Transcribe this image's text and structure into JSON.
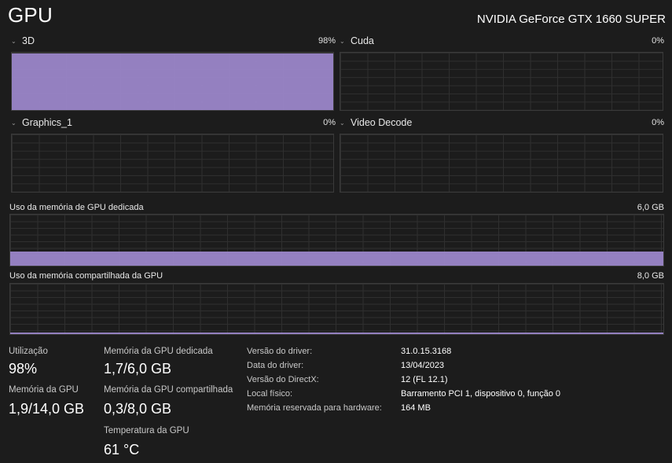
{
  "header": {
    "title": "GPU",
    "gpu_name": "NVIDIA GeForce GTX 1660 SUPER"
  },
  "engines": [
    {
      "label": "3D",
      "percent_label": "98%",
      "usage": 0.98
    },
    {
      "label": "Cuda",
      "percent_label": "0%",
      "usage": 0
    },
    {
      "label": "Graphics_1",
      "percent_label": "0%",
      "usage": 0
    },
    {
      "label": "Video Decode",
      "percent_label": "0%",
      "usage": 0
    }
  ],
  "memory_graphs": {
    "dedicated": {
      "label": "Uso da memória de GPU dedicada",
      "max": "6,0 GB",
      "usage": 0.283
    },
    "shared": {
      "label": "Uso da memória compartilhada da GPU",
      "max": "8,0 GB",
      "usage": 0.037
    }
  },
  "stats": {
    "utilization": {
      "label": "Utilização",
      "value": "98%"
    },
    "gpu_memory": {
      "label": "Memória da GPU",
      "value": "1,9/14,0 GB"
    },
    "dedicated_memory": {
      "label": "Memória da GPU dedicada",
      "value": "1,7/6,0 GB"
    },
    "shared_memory": {
      "label": "Memória da GPU compartilhada",
      "value": "0,3/8,0 GB"
    },
    "temperature": {
      "label": "Temperatura da GPU",
      "value": "61 °C"
    }
  },
  "info": [
    {
      "key": "Versão do driver:",
      "value": "31.0.15.3168"
    },
    {
      "key": "Data do driver:",
      "value": "13/04/2023"
    },
    {
      "key": "Versão do DirectX:",
      "value": "12 (FL 12.1)"
    },
    {
      "key": "Local físico:",
      "value": "Barramento PCI 1, dispositivo 0, função 0"
    },
    {
      "key": "Memória reservada para hardware:",
      "value": "164 MB"
    }
  ],
  "colors": {
    "accent": "#9b86c9",
    "background": "#1c1c1c",
    "grid": "#2f2f2f"
  }
}
